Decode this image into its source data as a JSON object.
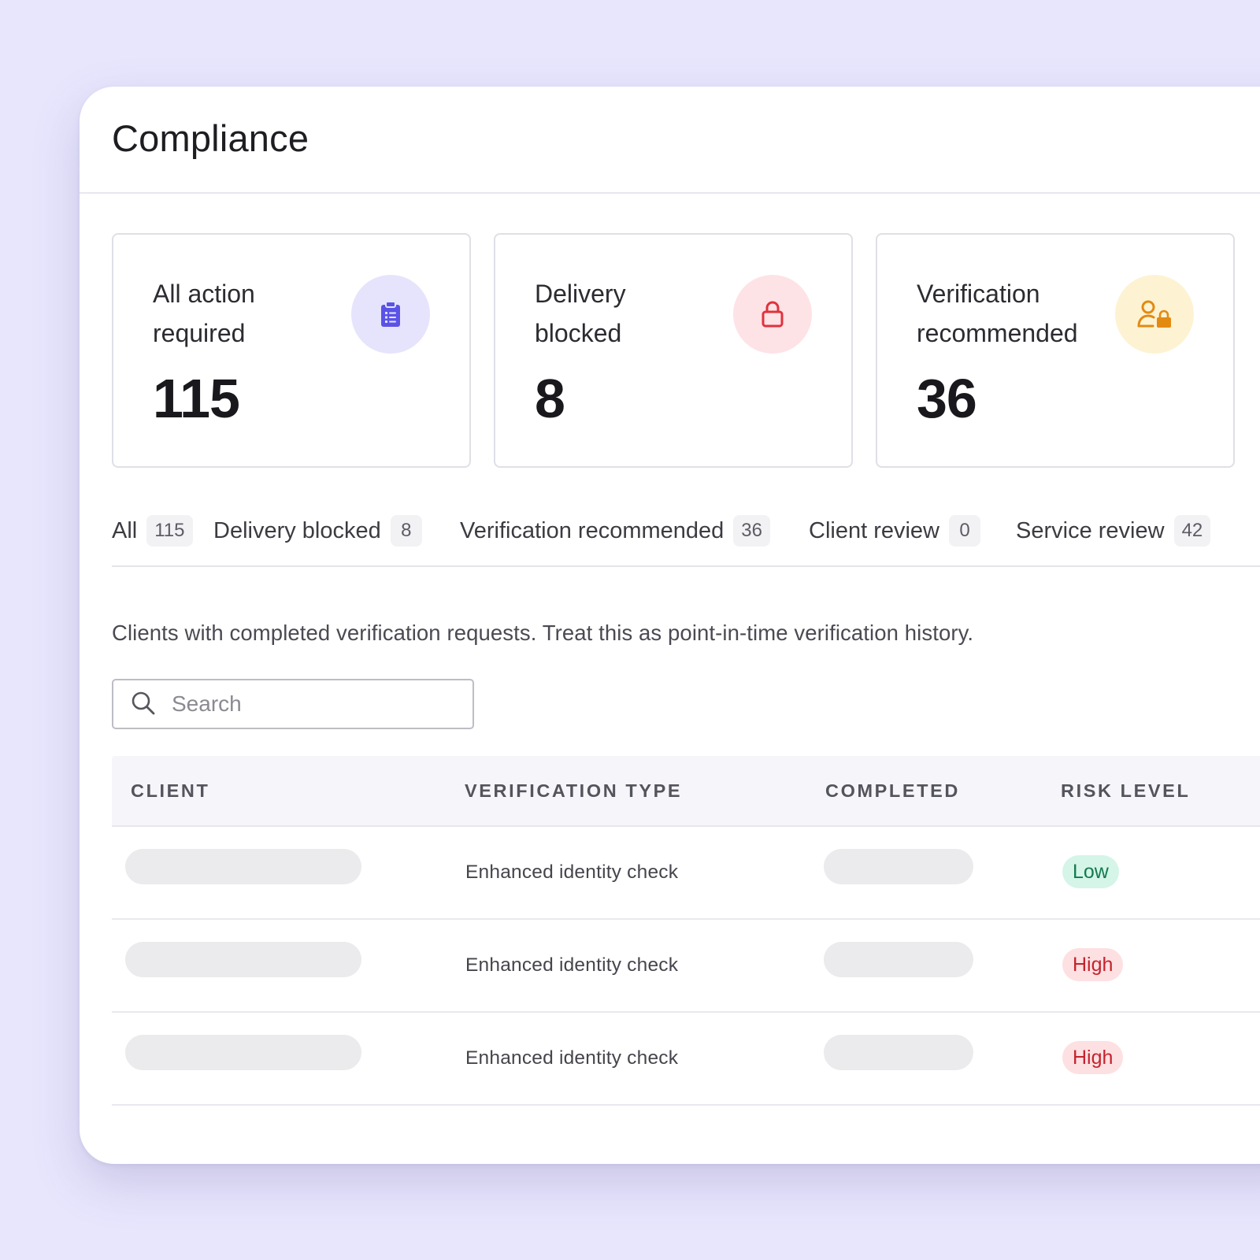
{
  "page": {
    "title": "Compliance",
    "description": "Clients with completed verification requests. Treat this as point-in-time verification history."
  },
  "cards": [
    {
      "label": "All action required",
      "value": "115",
      "icon": "clipboard-list-icon",
      "icon_color": "#5a53e6",
      "icon_bg": "#e6e4fc"
    },
    {
      "label": "Delivery blocked",
      "value": "8",
      "icon": "lock-icon",
      "icon_color": "#e0323c",
      "icon_bg": "#fde3e6"
    },
    {
      "label": "Verification recommended",
      "value": "36",
      "icon": "user-lock-icon",
      "icon_color": "#e38a12",
      "icon_bg": "#fdf3d3"
    }
  ],
  "tabs": [
    {
      "label": "All",
      "count": "115"
    },
    {
      "label": "Delivery blocked",
      "count": "8"
    },
    {
      "label": "Verification recommended",
      "count": "36"
    },
    {
      "label": "Client review",
      "count": "0"
    },
    {
      "label": "Service review",
      "count": "42"
    }
  ],
  "search": {
    "placeholder": "Search",
    "value": ""
  },
  "table": {
    "columns": [
      "Client",
      "Verification type",
      "Completed",
      "Risk level"
    ],
    "rows": [
      {
        "client": "",
        "verification_type": "Enhanced identity check",
        "completed": "",
        "risk": "Low"
      },
      {
        "client": "",
        "verification_type": "Enhanced identity check",
        "completed": "",
        "risk": "High"
      },
      {
        "client": "",
        "verification_type": "Enhanced identity check",
        "completed": "",
        "risk": "High"
      }
    ]
  },
  "colors": {
    "background": "#e8e6fd",
    "risk_low_bg": "#d4f5e8",
    "risk_low_text": "#137a4e",
    "risk_high_bg": "#fde0e2",
    "risk_high_text": "#c4232d"
  }
}
